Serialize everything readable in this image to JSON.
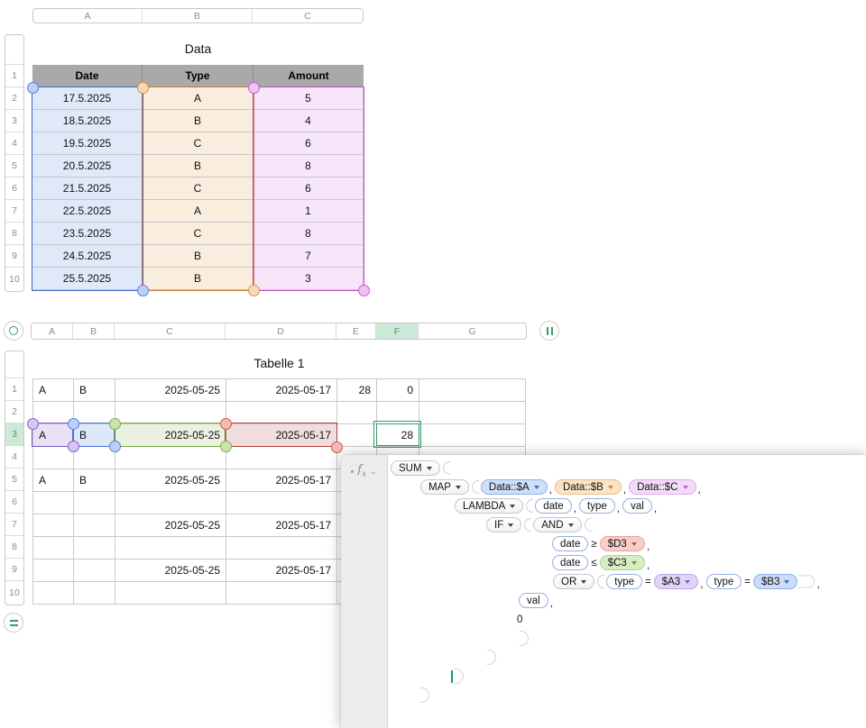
{
  "data_table": {
    "title": "Data",
    "column_letters": [
      "A",
      "B",
      "C"
    ],
    "row_numbers": [
      "1",
      "2",
      "3",
      "4",
      "5",
      "6",
      "7",
      "8",
      "9",
      "10"
    ],
    "headers": [
      "Date",
      "Type",
      "Amount"
    ],
    "rows": [
      [
        "17.5.2025",
        "A",
        "5"
      ],
      [
        "18.5.2025",
        "B",
        "4"
      ],
      [
        "19.5.2025",
        "C",
        "6"
      ],
      [
        "20.5.2025",
        "B",
        "8"
      ],
      [
        "21.5.2025",
        "C",
        "6"
      ],
      [
        "22.5.2025",
        "A",
        "1"
      ],
      [
        "23.5.2025",
        "C",
        "8"
      ],
      [
        "24.5.2025",
        "B",
        "7"
      ],
      [
        "25.5.2025",
        "B",
        "3"
      ]
    ],
    "range_highlights": [
      {
        "range": "A2:A10",
        "color_name": "blue",
        "fill": "#dfe9f8",
        "border": "#4468cc"
      },
      {
        "range": "B2:B10",
        "color_name": "orange",
        "fill": "#f9eddd",
        "border": "#cc7a2e"
      },
      {
        "range": "C2:C10",
        "color_name": "magenta",
        "fill": "#f7e6f9",
        "border": "#bf4ecb"
      }
    ]
  },
  "tabelle": {
    "title": "Tabelle 1",
    "column_letters": [
      "A",
      "B",
      "C",
      "D",
      "E",
      "F",
      "G"
    ],
    "row_numbers": [
      "1",
      "2",
      "3",
      "4",
      "5",
      "6",
      "7",
      "8",
      "9",
      "10"
    ],
    "selected_column": "F",
    "selected_row": "3",
    "rows": [
      {
        "A": "A",
        "B": "B",
        "C": "2025-05-25",
        "D": "2025-05-17",
        "E": "28",
        "F": "0"
      },
      {},
      {
        "A": "A",
        "B": "B",
        "C": "2025-05-25",
        "D": "2025-05-17",
        "F": "28"
      },
      {},
      {
        "A": "A",
        "B": "B",
        "C": "2025-05-25",
        "D": "2025-05-17"
      },
      {},
      {
        "C": "2025-05-25",
        "D": "2025-05-17"
      },
      {},
      {
        "C": "2025-05-25",
        "D": "2025-05-17"
      },
      {}
    ],
    "cell_highlights": [
      {
        "cell": "A3",
        "color_name": "purple",
        "fill": "#e9e1f6",
        "border": "#7e57c2"
      },
      {
        "cell": "B3",
        "color_name": "blue",
        "fill": "#dde8fa",
        "border": "#4a72d8"
      },
      {
        "cell": "C3",
        "color_name": "green",
        "fill": "#ebf1e1",
        "border": "#74a73c"
      },
      {
        "cell": "D3",
        "color_name": "red",
        "fill": "#f1dddd",
        "border": "#ab4138"
      }
    ],
    "selected_cell": {
      "cell": "F3",
      "value": "28",
      "border": "#2d9e64"
    }
  },
  "formula_editor": {
    "fx_label": "f",
    "fx_sub": "x",
    "chevron": "⌄",
    "pill_colors": {
      "blue": {
        "bg": "#cfdff8",
        "border": "#8fb1ea",
        "tri": "#3f6ed0"
      },
      "orange": {
        "bg": "#fae3c6",
        "border": "#eebd83",
        "tri": "#d0893a"
      },
      "pink": {
        "bg": "#f3dcf8",
        "border": "#dfa9e8",
        "tri": "#bf5ecc"
      },
      "red": {
        "bg": "#f6cfcb",
        "border": "#eba29c",
        "tri": "#c6504a"
      },
      "green": {
        "bg": "#d8ecc6",
        "border": "#abd48a",
        "tri": "#61a135"
      },
      "purple": {
        "bg": "#e0d4f7",
        "border": "#bba3ec",
        "tri": "#7e5ad0"
      },
      "blue2": {
        "bg": "#cbdcf8",
        "border": "#8fb1ea",
        "tri": "#3f6ed0"
      }
    },
    "lines": [
      {
        "indent": 3,
        "tokens": [
          {
            "t": "func",
            "v": "SUM"
          },
          {
            "t": "open"
          }
        ]
      },
      {
        "indent": 36,
        "tokens": [
          {
            "t": "func",
            "v": "MAP"
          },
          {
            "t": "open"
          },
          {
            "t": "ref",
            "v": "Data::$A",
            "c": "blue"
          },
          {
            "t": "comma"
          },
          {
            "t": "ref",
            "v": "Data::$B",
            "c": "orange"
          },
          {
            "t": "comma"
          },
          {
            "t": "ref",
            "v": "Data::$C",
            "c": "pink"
          },
          {
            "t": "comma"
          }
        ]
      },
      {
        "indent": 74,
        "tokens": [
          {
            "t": "func",
            "v": "LAMBDA"
          },
          {
            "t": "open"
          },
          {
            "t": "var",
            "v": "date"
          },
          {
            "t": "comma"
          },
          {
            "t": "var",
            "v": "type"
          },
          {
            "t": "comma"
          },
          {
            "t": "var",
            "v": "val"
          },
          {
            "t": "comma"
          }
        ]
      },
      {
        "indent": 109,
        "tokens": [
          {
            "t": "func",
            "v": "IF"
          },
          {
            "t": "open"
          },
          {
            "t": "func",
            "v": "AND"
          },
          {
            "t": "open"
          }
        ]
      },
      {
        "indent": 182,
        "tokens": [
          {
            "t": "var",
            "v": "date"
          },
          {
            "t": "op",
            "v": "≥"
          },
          {
            "t": "ref",
            "v": "$D3",
            "c": "red"
          },
          {
            "t": "comma"
          }
        ]
      },
      {
        "indent": 182,
        "tokens": [
          {
            "t": "var",
            "v": "date"
          },
          {
            "t": "op",
            "v": "≤"
          },
          {
            "t": "ref",
            "v": "$C3",
            "c": "green"
          },
          {
            "t": "comma"
          }
        ]
      },
      {
        "indent": 183,
        "tokens": [
          {
            "t": "func",
            "v": "OR"
          },
          {
            "t": "open"
          },
          {
            "t": "var",
            "v": "type"
          },
          {
            "t": "op",
            "v": "="
          },
          {
            "t": "ref",
            "v": "$A3",
            "c": "purple"
          },
          {
            "t": "comma"
          },
          {
            "t": "var",
            "v": "type"
          },
          {
            "t": "op",
            "v": "="
          },
          {
            "t": "ref",
            "v": "$B3",
            "c": "blue2"
          },
          {
            "t": "close"
          },
          {
            "t": "close"
          },
          {
            "t": "close"
          },
          {
            "t": "comma"
          }
        ]
      },
      {
        "indent": 145,
        "tokens": [
          {
            "t": "var",
            "v": "val"
          },
          {
            "t": "comma"
          }
        ]
      },
      {
        "indent": 143,
        "tokens": [
          {
            "t": "num",
            "v": "0"
          }
        ]
      },
      {
        "indent": 146,
        "tokens": [
          {
            "t": "bigclose"
          }
        ]
      },
      {
        "indent": 110,
        "tokens": [
          {
            "t": "bigclose"
          }
        ]
      },
      {
        "indent": 70,
        "tokens": [
          {
            "t": "cursor"
          },
          {
            "t": "bigclose"
          }
        ]
      },
      {
        "indent": 36,
        "tokens": [
          {
            "t": "bigclose"
          }
        ]
      }
    ]
  }
}
